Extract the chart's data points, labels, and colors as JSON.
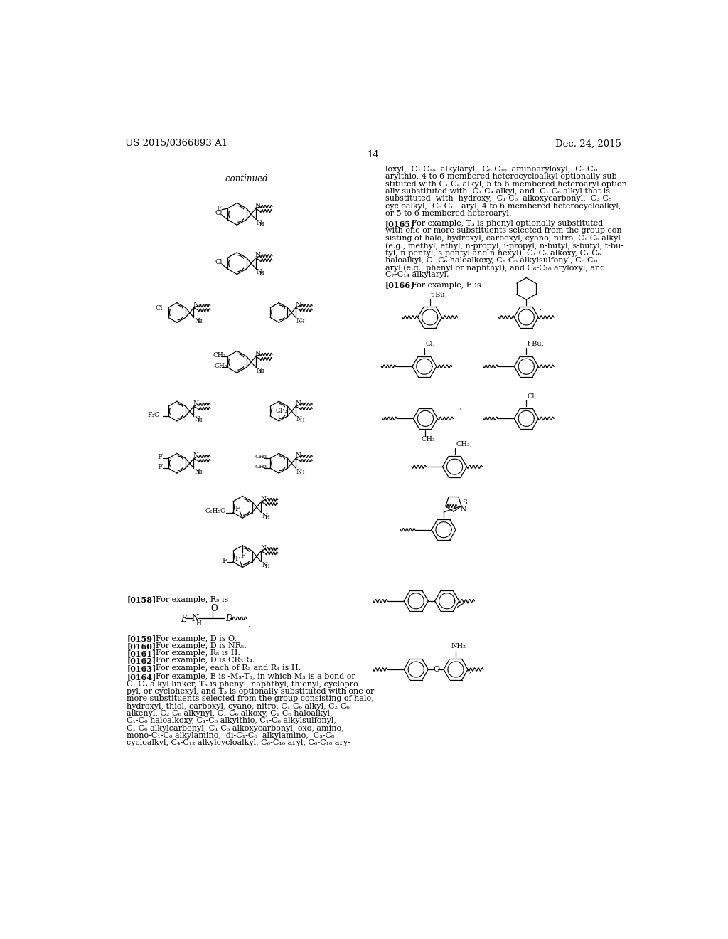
{
  "bg": "#ffffff",
  "header_left": "US 2015/0366893 A1",
  "header_right": "Dec. 24, 2015",
  "page_num": "14",
  "right_col_texts": [
    "loxyl,  C₇-C₁₄  alkylaryl,  C₆-C₁₀  aminoaryloxyl,  C₆-C₁₀",
    "arylthio, 4 to 6-membered heterocycloalkyl optionally sub-",
    "stituted with C₁-C₄ alkyl, 5 to 6-membered heteroaryl option-",
    "ally substituted with  C₁-C₄ alkyl, and  C₁-C₆ alkyl that is",
    "substituted  with  hydroxy,  C₁-C₆  alkoxycarbonyl,  C₃-C₈",
    "cycloalkyl,  C₆-C₁₀  aryl, 4 to 6-membered heterocycloalkyl,",
    "or 5 to 6-membered heteroaryl."
  ],
  "p165_label": "[0165]",
  "p165_lines": [
    "For example, T₃ is phenyl optionally substituted",
    "with one or more substituents selected from the group con-",
    "sisting of halo, hydroxyl, carboxyl, cyano, nitro, C₁-C₆ alkyl",
    "(e.g., methyl, ethyl, n-propyl, i-propyl, n-butyl, s-butyl, t-bu-",
    "tyl, n-pentyl, s-pentyl and n-hexyl), C₁-C₆ alkoxy, C₁-C₆",
    "haloalkyl, C₁-C₆ haloalkoxy, C₁-C₆ alkylsulfonyl, C₆-C₁₀",
    "aryl (e.g., phenyl or naphthyl), and C₆-C₁₀ aryloxyl, and",
    "C₇-C₁₄ alkylaryl."
  ],
  "p166_label": "[0166]",
  "p166_text": "For example, E is",
  "p158_label": "[0158]",
  "p158_text": "For example, R₉ is",
  "bottom_paragraphs": [
    [
      "[0159]",
      "For example, D is O."
    ],
    [
      "[0160]",
      "For example, D is NR₅."
    ],
    [
      "[0161]",
      "For example, R₅ is H."
    ],
    [
      "[0162]",
      "For example, D is CR₃R₄."
    ],
    [
      "[0163]",
      "For example, each of R₃ and R₄ is H."
    ]
  ],
  "p164_label": "[0164]",
  "p164_lines": [
    "For example, E is -M₃-T₃, in which M₃ is a bond or",
    "C₁-C₃ alkyl linker, T₃ is phenyl, naphthyl, thienyl, cyclopro-",
    "pyl, or cyclohexyl, and T₃ is optionally substituted with one or",
    "more substituents selected from the group consisting of halo,",
    "hydroxyl, thiol, carboxyl, cyano, nitro, C₁-C₆ alkyl, C₂-C₆",
    "alkenyl, C₂-C₆ alkynyl, C₁-C₆ alkoxy, C₁-C₆ haloalkyl,",
    "C₁-C₆ haloalkoxy, C₁-C₆ alkylthio, C₁-C₆ alkylsulfonyl,",
    "C₁-C₆ alkylcarbonyl, C₁-C₆ alkoxycarbonyl, oxo, amino,",
    "mono-C₁-C₆ alkylamino,  di-C₁-C₆  alkylamino,  C₃-C₈",
    "cycloalkyl, C₄-C₁₂ alkylcycloalkyl, C₆-C₁₀ aryl, C₆-C₁₀ ary-"
  ]
}
